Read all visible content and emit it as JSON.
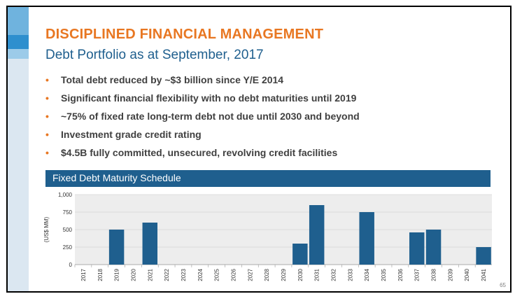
{
  "slide": {
    "title": "DISCIPLINED FINANCIAL MANAGEMENT",
    "subtitle": "Debt Portfolio as at September, 2017",
    "bullet_marker": "•",
    "bullets": [
      "Total debt reduced by ~$3 billion since Y/E 2014",
      "Significant financial flexibility with no debt maturities until 2019",
      "~75% of fixed rate long-term debt not due until 2030 and beyond",
      "Investment grade credit rating",
      "$4.5B fully committed, unsecured, revolving credit facilities"
    ],
    "page_number": "65"
  },
  "colors": {
    "title": "#e87722",
    "subtitle": "#1f5f8e",
    "header_bg": "#1f5f8e",
    "bar": "#1f5f8e",
    "plot_bg": "#ededed",
    "sidebar_light": "#dbe7f1",
    "sidebar_mid": "#6fb3de",
    "sidebar_dark": "#2e8fce"
  },
  "chart_data": {
    "type": "bar",
    "title": "Fixed Debt Maturity Schedule",
    "xlabel": "",
    "ylabel": "(US$ MM)",
    "ylim": [
      0,
      1000
    ],
    "yticks": [
      0,
      250,
      500,
      750,
      1000
    ],
    "ytick_labels": [
      "0",
      "250",
      "500",
      "750",
      "1,000"
    ],
    "grid": true,
    "categories": [
      "2017",
      "2018",
      "2019",
      "2020",
      "2021",
      "2022",
      "2023",
      "2024",
      "2025",
      "2026",
      "2027",
      "2028",
      "2029",
      "2030",
      "2031",
      "2032",
      "2033",
      "2034",
      "2035",
      "2036",
      "2037",
      "2038",
      "2039",
      "2040",
      "2041"
    ],
    "values": [
      0,
      0,
      500,
      0,
      600,
      0,
      0,
      0,
      0,
      0,
      0,
      0,
      0,
      300,
      850,
      0,
      0,
      750,
      0,
      0,
      460,
      500,
      0,
      0,
      250
    ]
  }
}
